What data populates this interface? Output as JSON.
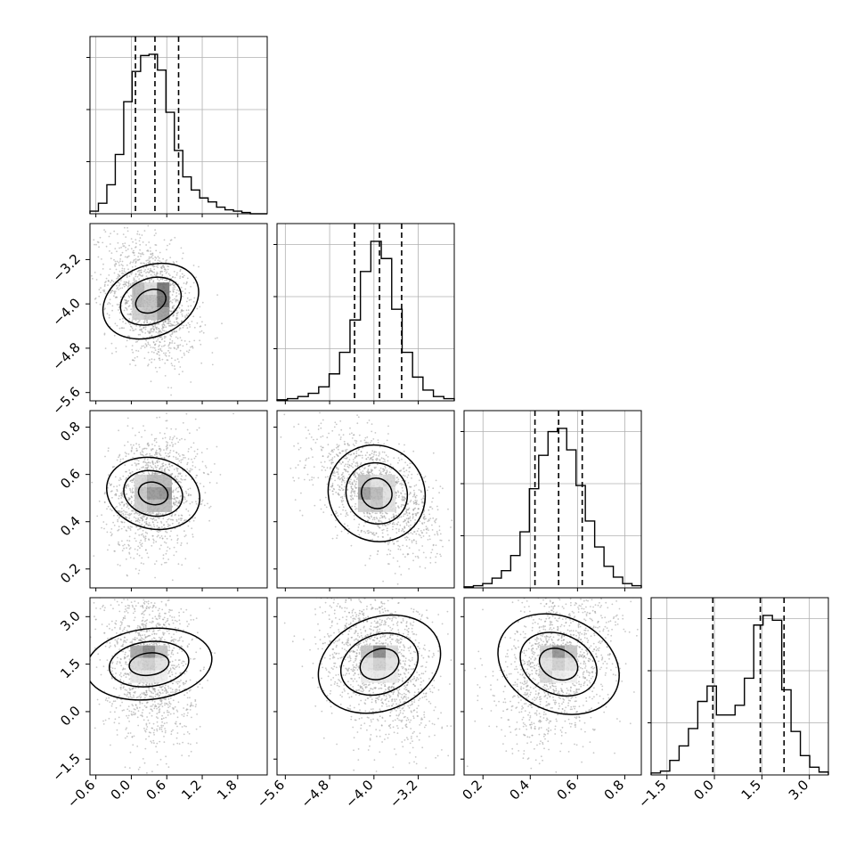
{
  "chart_data": {
    "type": "corner",
    "grid": true,
    "parameters": [
      {
        "range": [
          -0.7,
          2.3
        ],
        "ticks": [
          -0.6,
          0.0,
          0.6,
          1.2,
          1.8
        ],
        "tick_labels": [
          "−0.6",
          "0.0",
          "0.6",
          "1.2",
          "1.8"
        ],
        "quantiles": [
          0.07,
          0.4,
          0.8
        ]
      },
      {
        "range": [
          -5.75,
          -2.55
        ],
        "ticks": [
          -5.6,
          -4.8,
          -4.0,
          -3.2
        ],
        "tick_labels": [
          "−5.6",
          "−4.8",
          "−4.0",
          "−3.2"
        ],
        "quantiles": [
          -4.35,
          -3.9,
          -3.5
        ]
      },
      {
        "range": [
          0.12,
          0.87
        ],
        "ticks": [
          0.2,
          0.4,
          0.6,
          0.8
        ],
        "tick_labels": [
          "0.2",
          "0.4",
          "0.6",
          "0.8"
        ],
        "quantiles": [
          0.42,
          0.52,
          0.62
        ]
      },
      {
        "range": [
          -2.0,
          3.6
        ],
        "ticks": [
          -1.5,
          0.0,
          1.5,
          3.0
        ],
        "tick_labels": [
          "−1.5",
          "0.0",
          "1.5",
          "3.0"
        ],
        "quantiles": [
          -0.05,
          1.45,
          2.2
        ]
      }
    ],
    "histograms": [
      {
        "counts": [
          2,
          8,
          22,
          45,
          85,
          108,
          120,
          121,
          109,
          77,
          48,
          28,
          18,
          12,
          9,
          5,
          3,
          2,
          1,
          0,
          0
        ]
      },
      {
        "counts": [
          1,
          2,
          4,
          7,
          13,
          25,
          45,
          75,
          120,
          148,
          132,
          85,
          45,
          22,
          10,
          4,
          2
        ]
      },
      {
        "counts": [
          1,
          2,
          4,
          9,
          16,
          30,
          52,
          92,
          123,
          145,
          148,
          128,
          95,
          62,
          38,
          20,
          10,
          4,
          2
        ]
      },
      {
        "counts": [
          2,
          4,
          15,
          30,
          48,
          76,
          92,
          62,
          62,
          72,
          100,
          155,
          165,
          160,
          88,
          45,
          20,
          8,
          3
        ]
      }
    ],
    "pairs": [
      {
        "row": 1,
        "col": 0,
        "mean": [
          0.33,
          -3.95
        ],
        "sd": [
          0.3,
          0.45
        ],
        "rho": -0.35
      },
      {
        "row": 2,
        "col": 0,
        "mean": [
          0.37,
          0.52
        ],
        "sd": [
          0.3,
          0.1
        ],
        "rho": 0.15
      },
      {
        "row": 2,
        "col": 1,
        "mean": [
          -3.95,
          0.52
        ],
        "sd": [
          0.45,
          0.1
        ],
        "rho": -0.55
      },
      {
        "row": 3,
        "col": 0,
        "mean": [
          0.3,
          1.5
        ],
        "sd": [
          0.3,
          1.0
        ],
        "rho": -0.15
      },
      {
        "row": 3,
        "col": 1,
        "mean": [
          -3.9,
          1.5
        ],
        "sd": [
          0.42,
          1.0
        ],
        "rho": -0.3
      },
      {
        "row": 3,
        "col": 2,
        "mean": [
          0.52,
          1.5
        ],
        "sd": [
          0.1,
          1.0
        ],
        "rho": 0.35
      }
    ],
    "cell_shades": {
      "1-0": [
        [
          0.35,
          0.18,
          0.7
        ],
        [
          0.35,
          0.32,
          0.72
        ],
        [
          0.25,
          0.3,
          0.5
        ]
      ],
      "2-0": [
        [
          0.2,
          0.35,
          0.35
        ],
        [
          0.3,
          0.52,
          0.55
        ],
        [
          0.25,
          0.35,
          0.35
        ]
      ],
      "2-1": [
        [
          0.3,
          0.15,
          0.2
        ],
        [
          0.5,
          0.35,
          0.15
        ],
        [
          0.25,
          0.3,
          0.15
        ]
      ],
      "3-0": [
        [
          0.45,
          0.6,
          0.3
        ],
        [
          0.2,
          0.25,
          0.15
        ],
        [
          0.12,
          0.12,
          0.08
        ]
      ],
      "3-1": [
        [
          0.3,
          0.6,
          0.2
        ],
        [
          0.15,
          0.25,
          0.15
        ],
        [
          0.1,
          0.12,
          0.1
        ]
      ],
      "3-2": [
        [
          0.25,
          0.55,
          0.3
        ],
        [
          0.15,
          0.25,
          0.15
        ],
        [
          0.2,
          0.1,
          0.08
        ]
      ]
    },
    "colors": {
      "scatter": "#9a9a9a",
      "hist_line": "#000000",
      "grid": "#b0b0b0",
      "quantile_line": "#000000"
    }
  }
}
